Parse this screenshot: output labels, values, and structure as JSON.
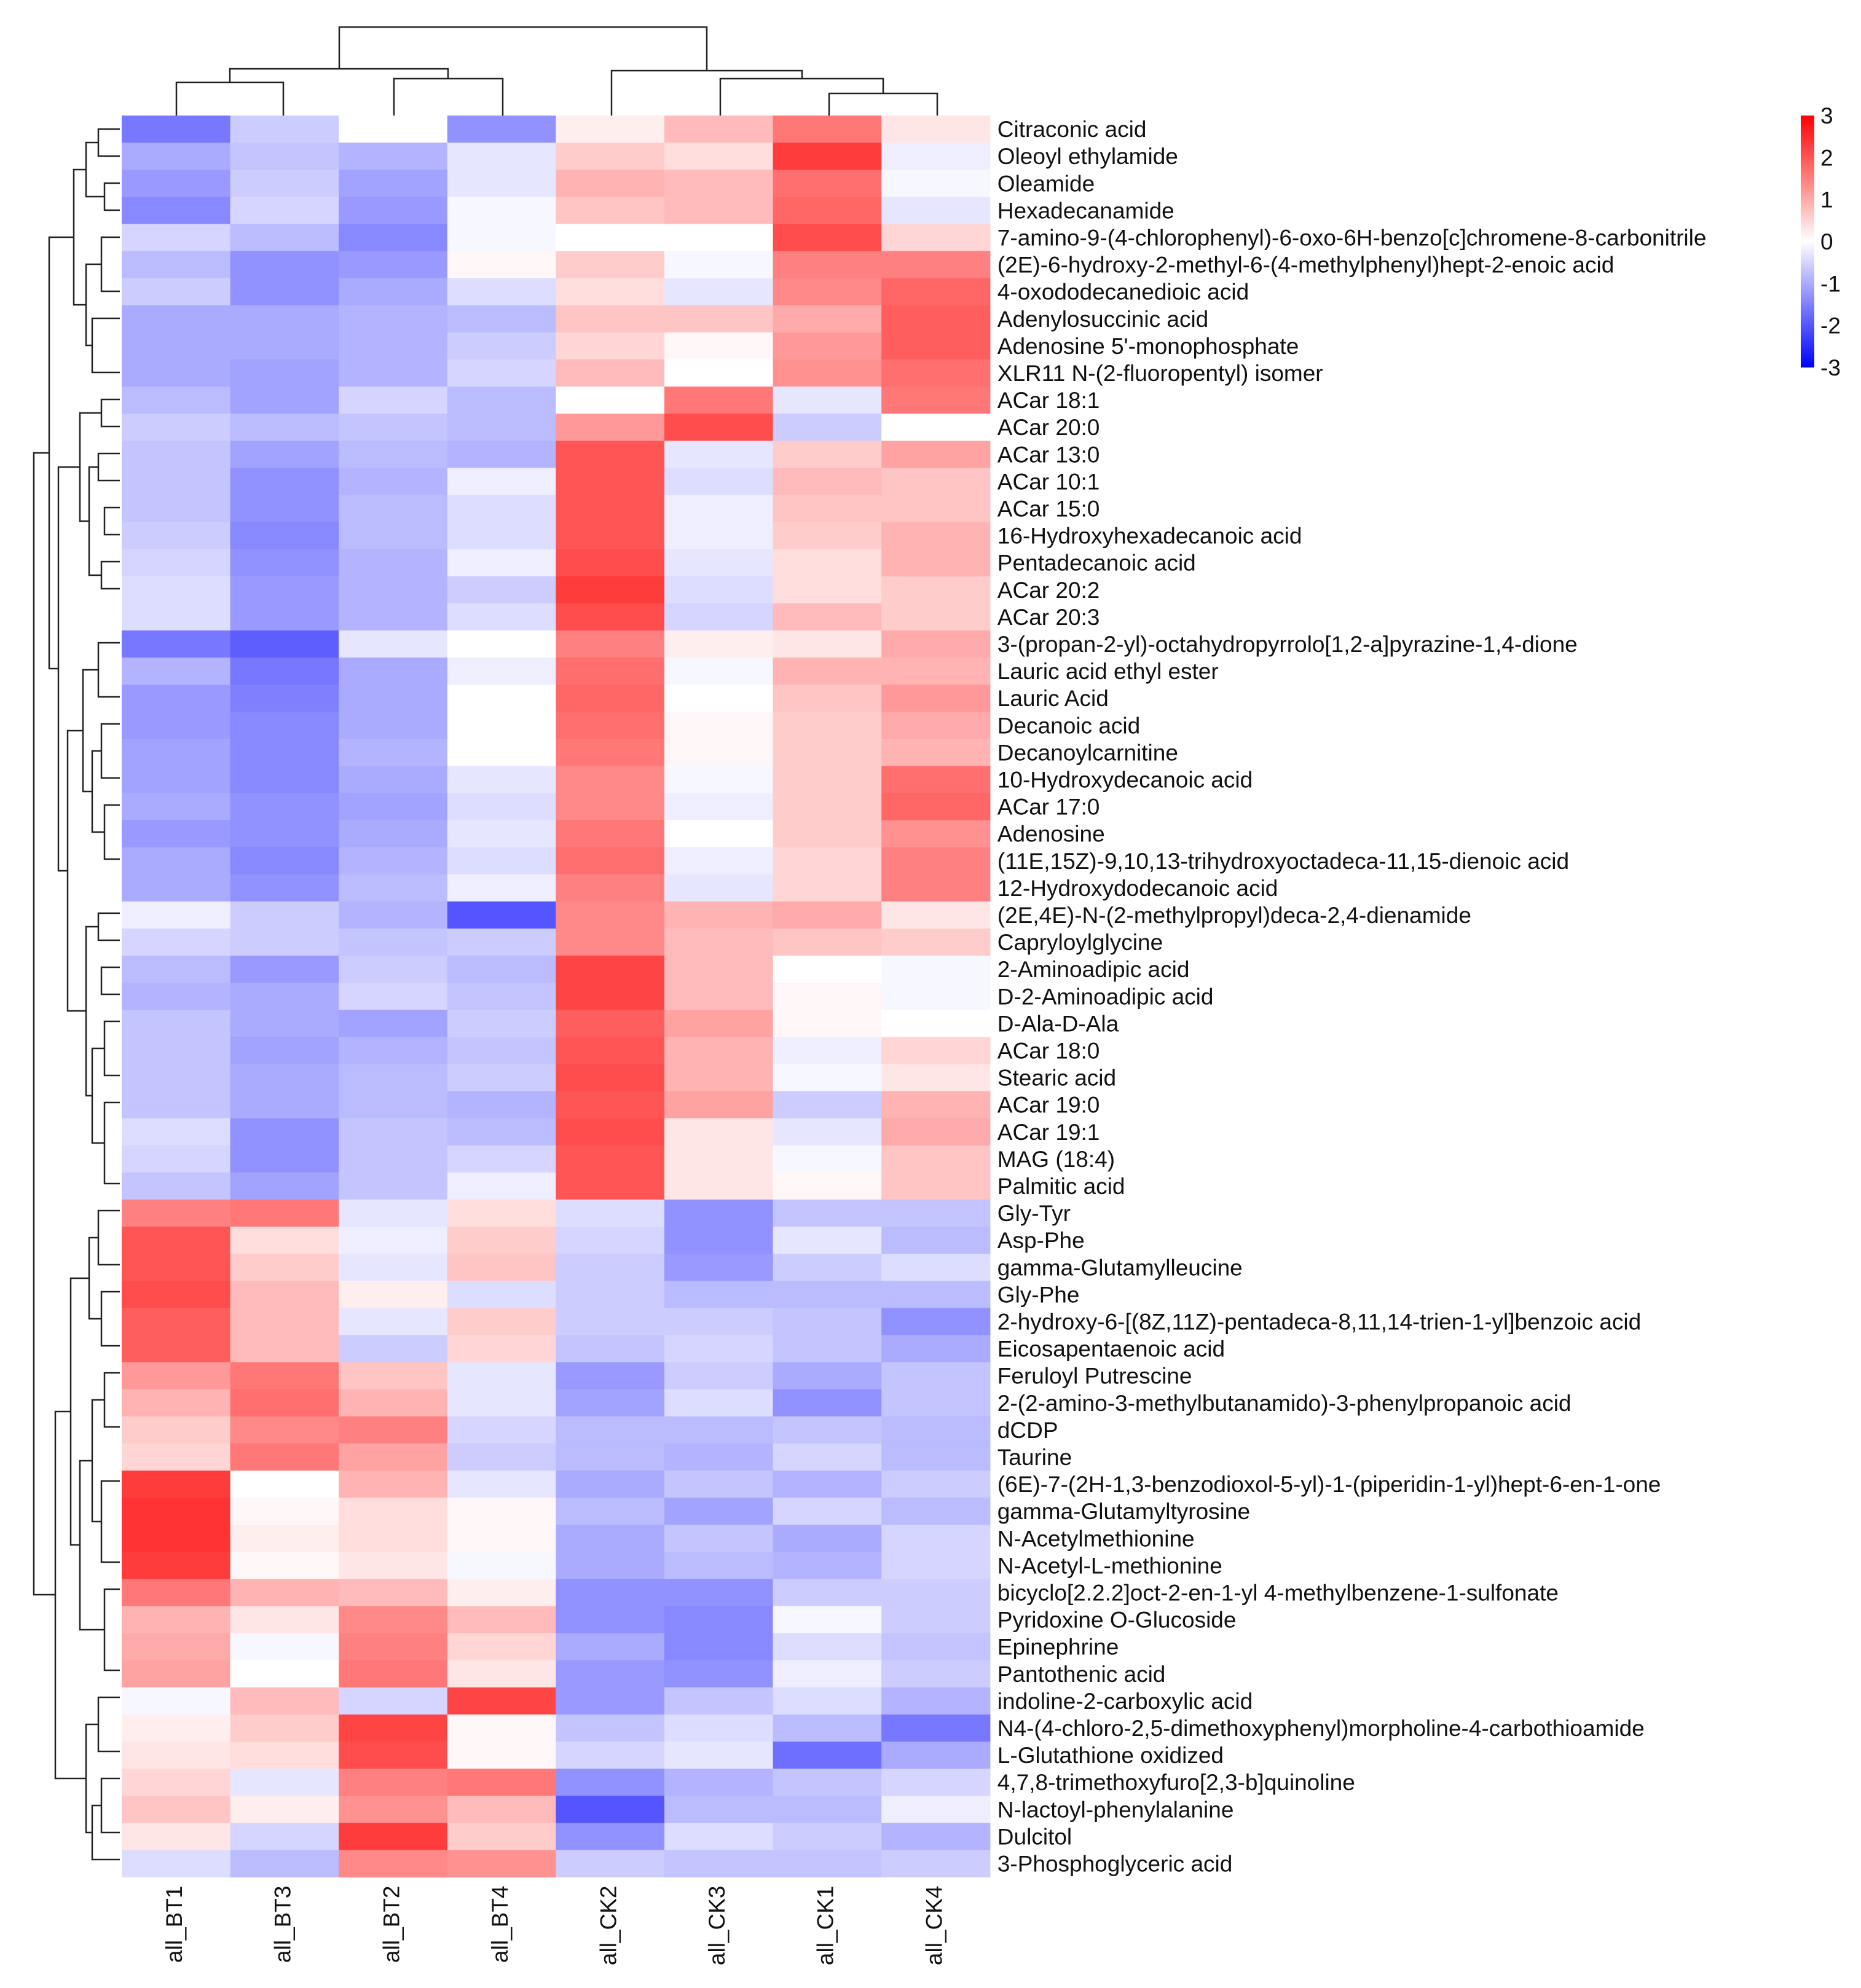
{
  "chart_data": {
    "type": "heatmap",
    "title": "",
    "columns": [
      "all_BT1",
      "all_BT3",
      "all_BT2",
      "all_BT4",
      "all_CK2",
      "all_CK3",
      "all_CK1",
      "all_CK4"
    ],
    "rows": [
      "Citraconic acid",
      "Oleoyl ethylamide",
      "Oleamide",
      "Hexadecanamide",
      "7-amino-9-(4-chlorophenyl)-6-oxo-6H-benzo[c]chromene-8-carbonitrile",
      "(2E)-6-hydroxy-2-methyl-6-(4-methylphenyl)hept-2-enoic acid",
      "4-oxododecanedioic acid",
      "Adenylosuccinic acid",
      "Adenosine 5'-monophosphate",
      "XLR11 N-(2-fluoropentyl) isomer",
      "ACar 18:1",
      "ACar 20:0",
      "ACar 13:0",
      "ACar 10:1",
      "ACar 15:0",
      "16-Hydroxyhexadecanoic acid",
      "Pentadecanoic acid",
      "ACar 20:2",
      "ACar 20:3",
      "3-(propan-2-yl)-octahydropyrrolo[1,2-a]pyrazine-1,4-dione",
      "Lauric acid ethyl ester",
      "Lauric Acid",
      "Decanoic acid",
      "Decanoylcarnitine",
      "10-Hydroxydecanoic acid",
      "ACar 17:0",
      "Adenosine",
      "(11E,15Z)-9,10,13-trihydroxyoctadeca-11,15-dienoic acid",
      "12-Hydroxydodecanoic acid",
      "(2E,4E)-N-(2-methylpropyl)deca-2,4-dienamide",
      "Capryloylglycine",
      "2-Aminoadipic acid",
      "D-2-Aminoadipic acid",
      "D-Ala-D-Ala",
      "ACar 18:0",
      "Stearic acid",
      "ACar 19:0",
      "ACar 19:1",
      "MAG (18:4)",
      "Palmitic acid",
      "Gly-Tyr",
      "Asp-Phe",
      "gamma-Glutamylleucine",
      "Gly-Phe",
      "2-hydroxy-6-[(8Z,11Z)-pentadeca-8,11,14-trien-1-yl]benzoic acid",
      "Eicosapentaenoic acid",
      "Feruloyl Putrescine",
      "2-(2-amino-3-methylbutanamido)-3-phenylpropanoic acid",
      "dCDP",
      "Taurine",
      "(6E)-7-(2H-1,3-benzodioxol-5-yl)-1-(piperidin-1-yl)hept-6-en-1-one",
      "gamma-Glutamyltyrosine",
      "N-Acetylmethionine",
      "N-Acetyl-L-methionine",
      "bicyclo[2.2.2]oct-2-en-1-yl 4-methylbenzene-1-sulfonate",
      "Pyridoxine O-Glucoside",
      "Epinephrine",
      "Pantothenic acid",
      "indoline-2-carboxylic acid",
      "N4-(4-chloro-2,5-dimethoxyphenyl)morpholine-4-carbothioamide",
      "L-Glutathione oxidized",
      "4,7,8-trimethoxyfuro[2,3-b]quinoline",
      "N-lactoyl-phenylalanine",
      "Dulcitol",
      "3-Phosphoglyceric acid"
    ],
    "values": [
      [
        -1.6,
        -0.6,
        0.0,
        -1.3,
        0.2,
        0.8,
        1.6,
        0.3
      ],
      [
        -1.0,
        -0.7,
        -0.9,
        -0.3,
        0.6,
        0.4,
        2.3,
        -0.2
      ],
      [
        -1.2,
        -0.6,
        -1.1,
        -0.3,
        0.9,
        0.8,
        1.7,
        -0.1
      ],
      [
        -1.4,
        -0.5,
        -1.2,
        -0.1,
        0.7,
        0.8,
        1.8,
        -0.3
      ],
      [
        -0.5,
        -0.8,
        -1.4,
        -0.1,
        0.0,
        0.0,
        2.1,
        0.5
      ],
      [
        -0.8,
        -1.3,
        -1.2,
        0.1,
        0.6,
        -0.1,
        1.5,
        1.5
      ],
      [
        -0.6,
        -1.3,
        -1.0,
        -0.4,
        0.4,
        -0.3,
        1.4,
        1.8
      ],
      [
        -1.0,
        -1.0,
        -0.9,
        -0.8,
        0.7,
        0.7,
        1.0,
        1.9
      ],
      [
        -1.0,
        -1.0,
        -0.9,
        -0.6,
        0.5,
        0.1,
        1.2,
        1.9
      ],
      [
        -1.0,
        -1.1,
        -0.9,
        -0.5,
        0.8,
        0.0,
        1.3,
        1.7
      ],
      [
        -0.8,
        -1.1,
        -0.5,
        -0.8,
        0.0,
        1.6,
        -0.3,
        1.6
      ],
      [
        -0.6,
        -0.8,
        -0.7,
        -0.8,
        1.2,
        2.1,
        -0.6,
        0.0
      ],
      [
        -0.7,
        -1.1,
        -0.8,
        -0.9,
        2.0,
        -0.3,
        0.6,
        1.1
      ],
      [
        -0.7,
        -1.3,
        -0.9,
        -0.2,
        2.0,
        -0.4,
        0.8,
        0.7
      ],
      [
        -0.7,
        -1.3,
        -0.8,
        -0.4,
        2.0,
        -0.2,
        0.7,
        0.7
      ],
      [
        -0.6,
        -1.4,
        -0.8,
        -0.4,
        2.0,
        -0.2,
        0.6,
        0.9
      ],
      [
        -0.5,
        -1.3,
        -0.9,
        -0.2,
        2.1,
        -0.3,
        0.4,
        0.9
      ],
      [
        -0.4,
        -1.2,
        -0.9,
        -0.6,
        2.3,
        -0.4,
        0.4,
        0.6
      ],
      [
        -0.4,
        -1.2,
        -0.9,
        -0.4,
        2.1,
        -0.5,
        0.8,
        0.6
      ],
      [
        -1.6,
        -1.9,
        -0.3,
        0.0,
        1.5,
        0.2,
        0.3,
        1.0
      ],
      [
        -0.9,
        -1.6,
        -1.0,
        -0.2,
        1.7,
        -0.1,
        0.9,
        0.9
      ],
      [
        -1.2,
        -1.5,
        -1.0,
        0.0,
        1.8,
        0.0,
        0.7,
        1.2
      ],
      [
        -1.2,
        -1.4,
        -1.0,
        0.0,
        1.7,
        0.1,
        0.6,
        1.0
      ],
      [
        -1.1,
        -1.4,
        -0.9,
        0.0,
        1.6,
        0.1,
        0.6,
        0.9
      ],
      [
        -1.1,
        -1.4,
        -1.0,
        -0.3,
        1.4,
        -0.1,
        0.6,
        1.7
      ],
      [
        -1.0,
        -1.3,
        -1.1,
        -0.4,
        1.4,
        -0.2,
        0.6,
        1.8
      ],
      [
        -1.2,
        -1.3,
        -1.0,
        -0.3,
        1.6,
        0.0,
        0.6,
        1.3
      ],
      [
        -1.0,
        -1.4,
        -0.9,
        -0.4,
        1.7,
        -0.2,
        0.5,
        1.5
      ],
      [
        -1.0,
        -1.3,
        -0.8,
        -0.2,
        1.5,
        -0.3,
        0.5,
        1.5
      ],
      [
        -0.2,
        -0.6,
        -0.9,
        -2.0,
        1.4,
        0.9,
        1.0,
        0.3
      ],
      [
        -0.5,
        -0.6,
        -0.7,
        -0.6,
        1.4,
        0.8,
        0.7,
        0.6
      ],
      [
        -0.8,
        -1.2,
        -0.6,
        -0.8,
        2.2,
        0.8,
        0.0,
        -0.1
      ],
      [
        -0.9,
        -1.0,
        -0.5,
        -0.7,
        2.2,
        0.8,
        0.1,
        -0.1
      ],
      [
        -0.7,
        -1.0,
        -1.1,
        -0.6,
        1.9,
        1.1,
        0.1,
        0.0
      ],
      [
        -0.7,
        -1.1,
        -0.9,
        -0.7,
        2.0,
        0.9,
        -0.2,
        0.5
      ],
      [
        -0.7,
        -1.0,
        -0.8,
        -0.6,
        2.1,
        0.9,
        -0.1,
        0.3
      ],
      [
        -0.7,
        -1.0,
        -0.8,
        -0.9,
        2.0,
        1.1,
        -0.6,
        0.9
      ],
      [
        -0.4,
        -1.3,
        -0.7,
        -0.8,
        2.1,
        0.3,
        -0.3,
        1.0
      ],
      [
        -0.5,
        -1.3,
        -0.7,
        -0.5,
        2.0,
        0.3,
        -0.1,
        0.7
      ],
      [
        -0.7,
        -1.1,
        -0.7,
        -0.2,
        2.0,
        0.3,
        0.1,
        0.7
      ],
      [
        1.5,
        1.6,
        -0.3,
        0.4,
        -0.4,
        -1.3,
        -0.7,
        -0.7
      ],
      [
        2.0,
        0.4,
        -0.2,
        0.6,
        -0.5,
        -1.3,
        -0.3,
        -0.8
      ],
      [
        2.0,
        0.6,
        -0.3,
        0.7,
        -0.6,
        -1.2,
        -0.6,
        -0.4
      ],
      [
        2.1,
        0.8,
        0.2,
        -0.4,
        -0.6,
        -0.8,
        -0.8,
        -0.8
      ],
      [
        1.9,
        0.8,
        -0.3,
        0.6,
        -0.6,
        -0.6,
        -0.7,
        -1.3
      ],
      [
        1.9,
        0.8,
        -0.6,
        0.5,
        -0.7,
        -0.5,
        -0.7,
        -1.0
      ],
      [
        1.2,
        1.6,
        0.7,
        -0.3,
        -1.2,
        -0.6,
        -1.0,
        -0.7
      ],
      [
        0.9,
        1.7,
        0.9,
        -0.3,
        -1.1,
        -0.4,
        -1.3,
        -0.7
      ],
      [
        0.6,
        1.4,
        1.5,
        -0.5,
        -0.8,
        -0.8,
        -0.7,
        -0.8
      ],
      [
        0.5,
        1.6,
        1.1,
        -0.6,
        -0.8,
        -0.9,
        -0.5,
        -0.8
      ],
      [
        2.3,
        0.0,
        0.9,
        -0.3,
        -1.0,
        -0.7,
        -0.9,
        -0.6
      ],
      [
        2.4,
        0.1,
        0.4,
        0.1,
        -0.8,
        -1.1,
        -0.5,
        -0.8
      ],
      [
        2.4,
        0.2,
        0.4,
        0.1,
        -1.0,
        -0.7,
        -1.0,
        -0.5
      ],
      [
        2.3,
        0.1,
        0.3,
        -0.1,
        -1.0,
        -0.8,
        -0.9,
        -0.5
      ],
      [
        1.6,
        0.9,
        0.8,
        0.2,
        -1.3,
        -1.3,
        -0.6,
        -0.6
      ],
      [
        0.9,
        0.3,
        1.4,
        0.8,
        -1.3,
        -1.4,
        -0.1,
        -0.6
      ],
      [
        1.0,
        -0.1,
        1.5,
        0.5,
        -1.0,
        -1.4,
        -0.4,
        -0.7
      ],
      [
        1.1,
        0.0,
        1.6,
        0.3,
        -1.2,
        -1.3,
        -0.2,
        -0.6
      ],
      [
        -0.1,
        0.8,
        -0.5,
        2.2,
        -1.2,
        -0.7,
        -0.4,
        -0.9
      ],
      [
        0.2,
        0.6,
        2.2,
        0.1,
        -0.7,
        -0.4,
        -0.8,
        -1.6
      ],
      [
        0.3,
        0.4,
        2.1,
        0.1,
        -0.5,
        -0.3,
        -1.7,
        -1.0
      ],
      [
        0.5,
        -0.3,
        1.5,
        1.6,
        -1.3,
        -0.9,
        -0.7,
        -0.5
      ],
      [
        0.7,
        0.2,
        1.3,
        0.8,
        -2.0,
        -0.8,
        -0.8,
        -0.2
      ],
      [
        0.3,
        -0.5,
        2.3,
        0.6,
        -1.3,
        -0.4,
        -0.6,
        -0.9
      ],
      [
        -0.4,
        -0.8,
        1.4,
        1.3,
        -0.6,
        -0.7,
        -0.7,
        -0.6
      ]
    ],
    "scale": {
      "min": -3,
      "max": 3,
      "ticks": [
        3,
        2,
        1,
        0,
        -1,
        -2,
        -3
      ]
    },
    "colors": {
      "low": "#0000ff",
      "mid": "#ffffff",
      "high": "#ff0000"
    }
  }
}
